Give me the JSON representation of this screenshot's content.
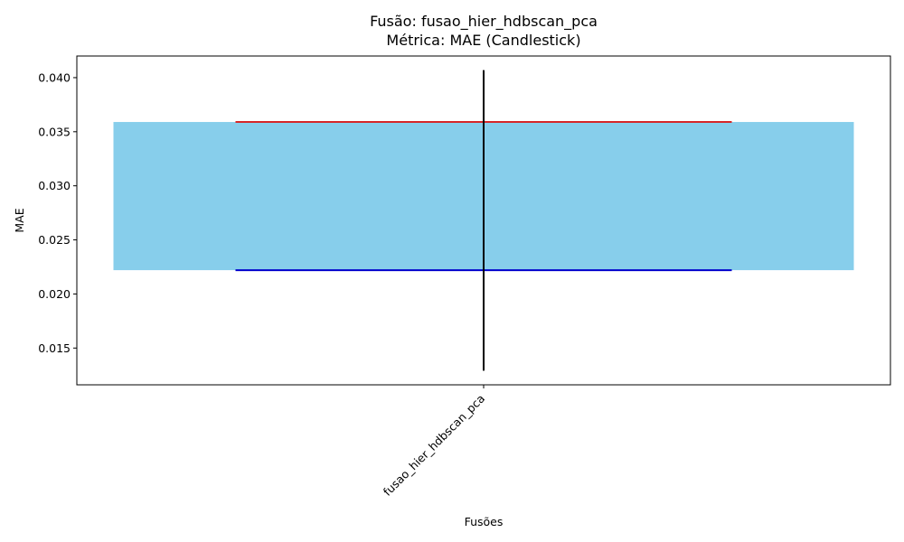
{
  "chart_data": {
    "type": "candlestick",
    "title": "Fusão: fusao_hier_hdbscan_pca",
    "subtitle": "Métrica: MAE (Candlestick)",
    "xlabel": "Fusões",
    "ylabel": "MAE",
    "categories": [
      "fusao_hier_hdbscan_pca"
    ],
    "candles": [
      {
        "category": "fusao_hier_hdbscan_pca",
        "low": 0.0129,
        "high": 0.0407,
        "bottom": 0.0222,
        "top": 0.0359
      }
    ],
    "ylim": [
      0.0116,
      0.042
    ],
    "yticks": [
      0.015,
      0.02,
      0.025,
      0.03,
      0.035,
      0.04
    ],
    "ytick_labels": [
      "0.015",
      "0.020",
      "0.025",
      "0.030",
      "0.035",
      "0.040"
    ],
    "grid": false,
    "colors": {
      "body": "#87CEEB",
      "top_line": "#d62728",
      "bottom_line": "#0000cc",
      "wick": "#000000"
    }
  }
}
